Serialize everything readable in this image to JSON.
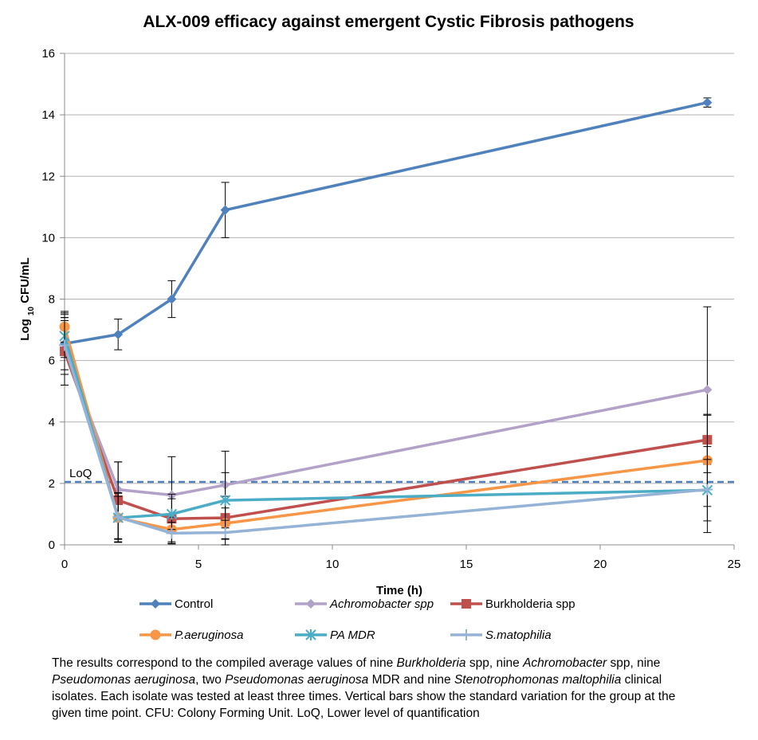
{
  "chart_data": {
    "type": "line",
    "title": "ALX-009 efficacy against emergent Cystic Fibrosis pathogens",
    "xlabel": "Time (h)",
    "ylabel_main": "Log",
    "ylabel_sub": "10",
    "ylabel_unit": "CFU/mL",
    "xlim": [
      0,
      25
    ],
    "ylim": [
      0,
      16
    ],
    "x_ticks": [
      "0",
      "5",
      "10",
      "15",
      "20",
      "25"
    ],
    "y_ticks": [
      "0",
      "2",
      "4",
      "6",
      "8",
      "10",
      "12",
      "14",
      "16"
    ],
    "x_tick_values": [
      0,
      5,
      10,
      15,
      20,
      25
    ],
    "y_tick_values": [
      0,
      2,
      4,
      6,
      8,
      10,
      12,
      14,
      16
    ],
    "grid": "horizontal",
    "legend_position": "bottom",
    "reference_line": {
      "label": "LoQ",
      "y": 2.05,
      "color": "#4f81bd"
    },
    "series": [
      {
        "name": "Control",
        "italic": false,
        "color": "#4f81bd",
        "marker": "diamond",
        "x": [
          0,
          2,
          4,
          6,
          24
        ],
        "y": [
          6.55,
          6.85,
          8.0,
          10.9,
          14.4
        ],
        "err": [
          1.0,
          0.5,
          0.6,
          0.9,
          0.15
        ]
      },
      {
        "name": "Achromobacter spp",
        "italic": true,
        "color": "#b3a2c7",
        "marker": "diamond",
        "x": [
          0,
          2,
          4,
          6,
          24
        ],
        "y": [
          6.3,
          1.8,
          1.62,
          1.95,
          5.05
        ],
        "err": [
          1.1,
          0.9,
          1.25,
          1.1,
          2.7
        ]
      },
      {
        "name": "Burkholderia spp",
        "italic": false,
        "color": "#c0504d",
        "marker": "square",
        "x": [
          0,
          2,
          4,
          6,
          24
        ],
        "y": [
          6.3,
          1.45,
          0.85,
          0.88,
          3.42
        ],
        "err": [
          1.1,
          1.25,
          0.8,
          0.7,
          0.8
        ]
      },
      {
        "name": "P.aeruginosa",
        "italic": true,
        "color": "#f79646",
        "marker": "circle",
        "x": [
          0,
          2,
          4,
          6,
          24
        ],
        "y": [
          7.1,
          0.88,
          0.5,
          0.7,
          2.75
        ],
        "err": [
          0.5,
          0.8,
          0.4,
          0.5,
          1.5
        ]
      },
      {
        "name": "PA MDR",
        "italic": true,
        "color": "#4bacc6",
        "marker": "star",
        "x": [
          0,
          2,
          4,
          6,
          24
        ],
        "y": [
          6.8,
          0.88,
          1.0,
          1.45,
          1.78
        ],
        "err": [
          0.7,
          0.7,
          0.5,
          0.9,
          1.0
        ]
      },
      {
        "name": "S.matophilia",
        "italic": true,
        "color": "#95b3d7",
        "marker": "plus",
        "x": [
          0,
          2,
          4,
          6,
          24
        ],
        "y": [
          6.5,
          0.9,
          0.38,
          0.4,
          1.8
        ],
        "err": [
          0.8,
          0.8,
          0.35,
          0.4,
          1.4
        ]
      }
    ]
  },
  "caption": {
    "p1": "The results correspond to the compiled average values of nine ",
    "i1": "Burkholderia",
    "p2": " spp, nine ",
    "i2": "Achromobacter",
    "p3": " spp, nine ",
    "i3": "Pseudomonas aeruginosa",
    "p4": ", two ",
    "i4": "Pseudomonas aeruginosa",
    "p5": " MDR and nine ",
    "i5": "Stenotrophomonas maltophilia",
    "p6": " clinical isolates. Each isolate was tested at least three times. Vertical bars show the standard variation for the group at the given time point. CFU: Colony Forming Unit. LoQ, Lower level of quantification"
  }
}
